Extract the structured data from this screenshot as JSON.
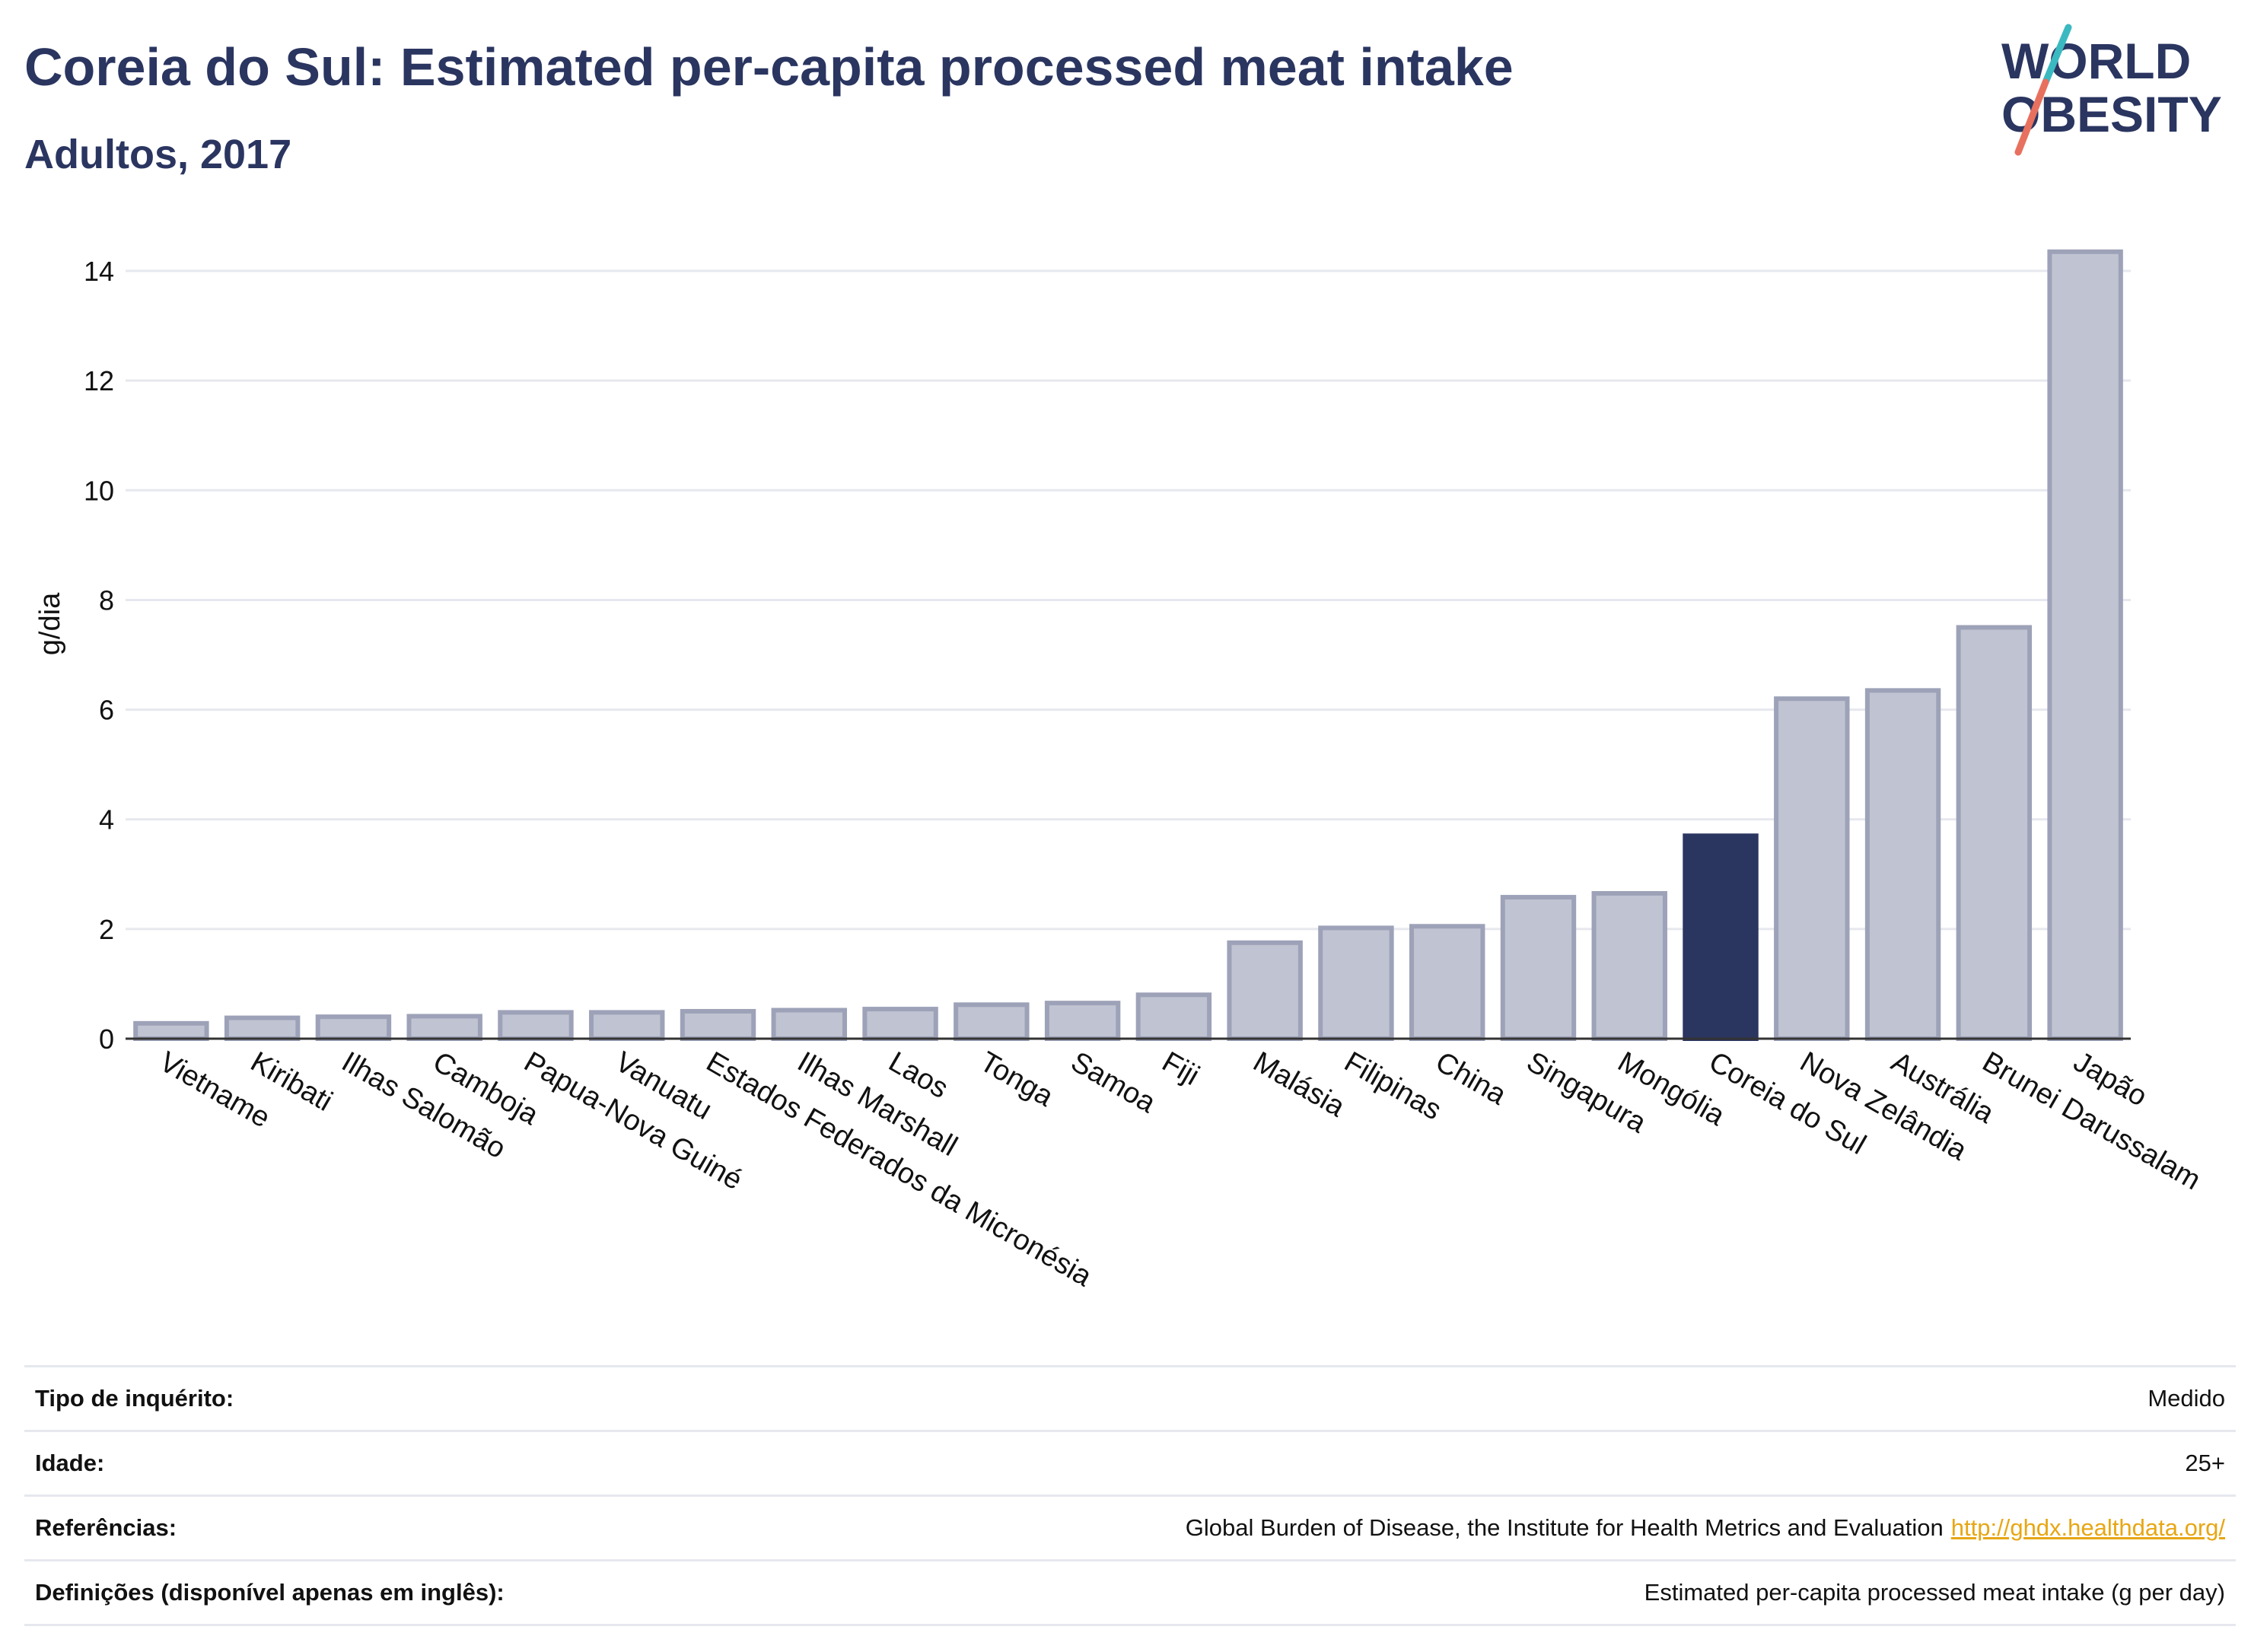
{
  "header": {
    "title": "Coreia do Sul: Estimated per-capita processed meat intake",
    "subtitle": "Adultos, 2017"
  },
  "logo": {
    "line1": "WORLD",
    "line2": "OBESITY",
    "colors": {
      "text": "#2a3560",
      "slash_top": "#3bb9c1",
      "slash_bottom": "#e8705f"
    }
  },
  "chart_data": {
    "type": "bar",
    "ylabel": "g/dia",
    "ylim": [
      0,
      14.5
    ],
    "yticks": [
      0,
      2,
      4,
      6,
      8,
      10,
      12,
      14
    ],
    "grid": true,
    "highlight": "Coreia do Sul",
    "colors": {
      "bar": "#c0c3d1",
      "bar_border": "#9da2b8",
      "highlight": "#2a3560",
      "grid": "#e6e8ee",
      "axis": "#333333"
    },
    "categories": [
      "Vietname",
      "Kiribati",
      "Ilhas Salomão",
      "Camboja",
      "Papua-Nova Guiné",
      "Vanuatu",
      "Estados Federados da Micronésia",
      "Ilhas Marshall",
      "Laos",
      "Tonga",
      "Samoa",
      "Fiji",
      "Malásia",
      "Filipinas",
      "China",
      "Singapura",
      "Mongólia",
      "Coreia do Sul",
      "Nova Zelândia",
      "Austrália",
      "Brunei Darussalam",
      "Japão"
    ],
    "values": [
      0.28,
      0.38,
      0.4,
      0.41,
      0.48,
      0.48,
      0.5,
      0.52,
      0.54,
      0.62,
      0.65,
      0.8,
      1.75,
      2.02,
      2.05,
      2.58,
      2.65,
      3.7,
      6.2,
      6.35,
      7.5,
      14.35
    ]
  },
  "info": [
    {
      "label": "Tipo de inquérito:",
      "value": "Medido"
    },
    {
      "label": "Idade:",
      "value": "25+"
    },
    {
      "label": "Referências:",
      "value": "Global Burden of Disease, the Institute for Health Metrics and Evaluation",
      "link": "http://ghdx.healthdata.org/"
    },
    {
      "label": "Definições (disponível apenas em inglês):",
      "value": "Estimated per-capita processed meat intake (g per day)"
    }
  ]
}
